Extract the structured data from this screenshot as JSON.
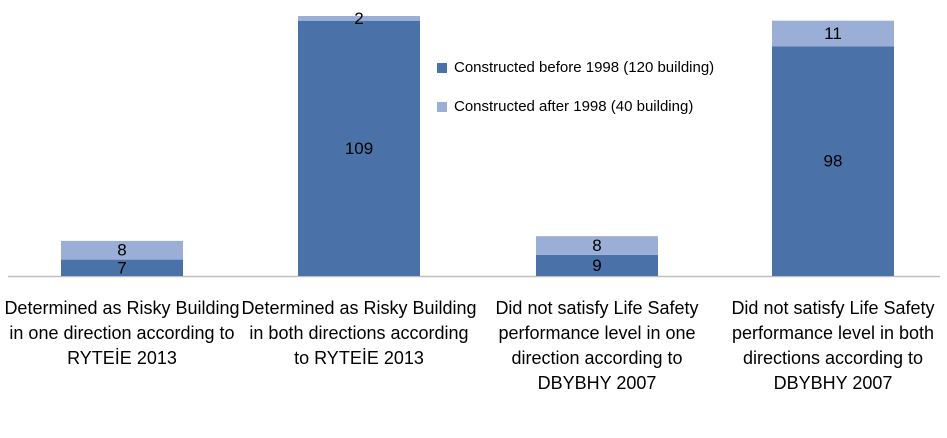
{
  "chart_data": {
    "type": "stacked-bar",
    "categories": [
      "Determined as Risky Building in one direction according to RYTEİE 2013",
      "Determined as Risky Building in both directions according to RYTEİE 2013",
      "Did not satisfy Life Safety performance level in one direction according to DBYBHY 2007",
      "Did not satisfy Life Safety performance level in both directions according to DBYBHY 2007"
    ],
    "series": [
      {
        "name": "Constructed before 1998 (120 building)",
        "color": "#4a72a8",
        "values": [
          7,
          109,
          9,
          98
        ]
      },
      {
        "name": "Constructed after 1998 (40 building)",
        "color": "#9aaed6",
        "values": [
          8,
          2,
          8,
          11
        ]
      }
    ]
  }
}
